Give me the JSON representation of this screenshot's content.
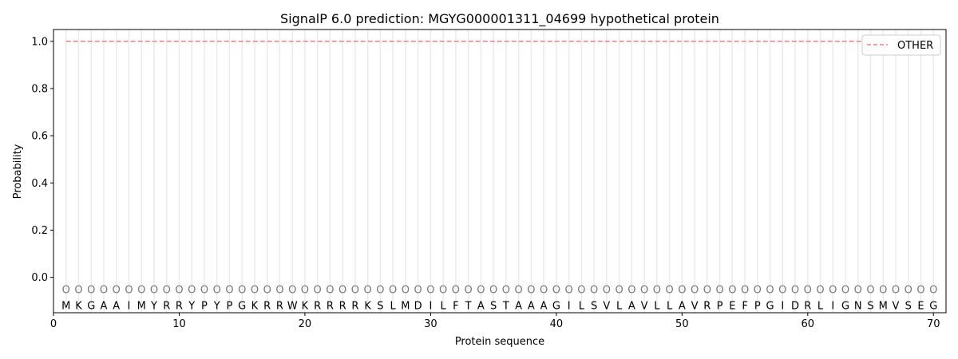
{
  "chart_data": {
    "type": "line",
    "title": "SignalP 6.0 prediction: MGYG000001311_04699 hypothetical protein",
    "xlabel": "Protein sequence",
    "ylabel": "Probability",
    "xlim": [
      0,
      71
    ],
    "ylim": [
      -0.15,
      1.05
    ],
    "xticks": [
      0,
      10,
      20,
      30,
      40,
      50,
      60,
      70
    ],
    "yticks": [
      0.0,
      0.2,
      0.4,
      0.6,
      0.8,
      1.0
    ],
    "ytick_labels": [
      "0.0",
      "0.2",
      "0.4",
      "0.6",
      "0.8",
      "1.0"
    ],
    "sequence": "MKGAAIMYRRYPYPGKRRWKRRRRKSLMDILFTASTAAAGILSVLAVLLAVRPEFPGIDRLIGNSMVSEG",
    "region_label": "O",
    "series": [
      {
        "name": "OTHER",
        "color": "#f08080",
        "style": "dashed",
        "x_start": 1,
        "x_end": 70,
        "value": 1.0
      }
    ],
    "legend": {
      "placement": "top-right",
      "entries": [
        "OTHER"
      ]
    },
    "vertical_grid": true
  }
}
